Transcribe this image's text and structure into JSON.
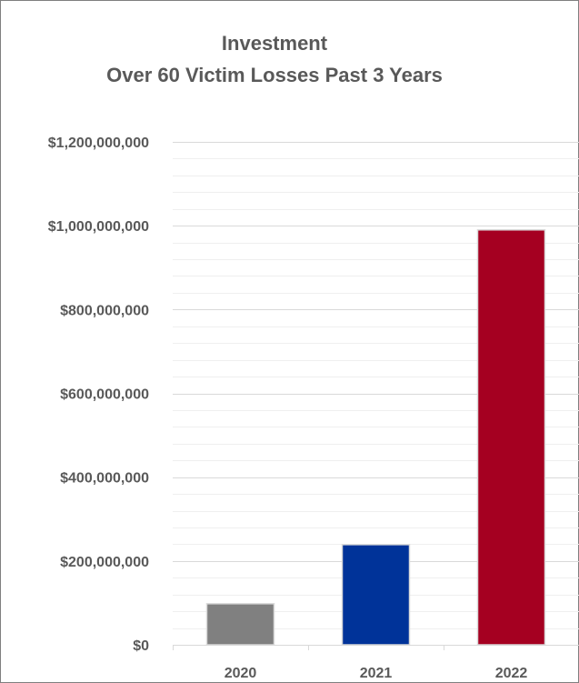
{
  "chart_data": {
    "type": "bar",
    "title": "Investment",
    "subtitle": "Over 60 Victim Losses Past 3 Years",
    "categories": [
      "2020",
      "2021",
      "2022"
    ],
    "values": [
      98000000,
      239000000,
      990000000
    ],
    "bar_colors": [
      "#808080",
      "#003399",
      "#a50021"
    ],
    "ylim": [
      0,
      1200000000
    ],
    "y_ticks": [
      0,
      200000000,
      400000000,
      600000000,
      800000000,
      1000000000,
      1200000000
    ],
    "y_tick_labels": [
      "$0",
      "$200,000,000",
      "$400,000,000",
      "$600,000,000",
      "$800,000,000",
      "$1,000,000,000",
      "$1,200,000,000"
    ],
    "grid": true,
    "legend": "none"
  }
}
